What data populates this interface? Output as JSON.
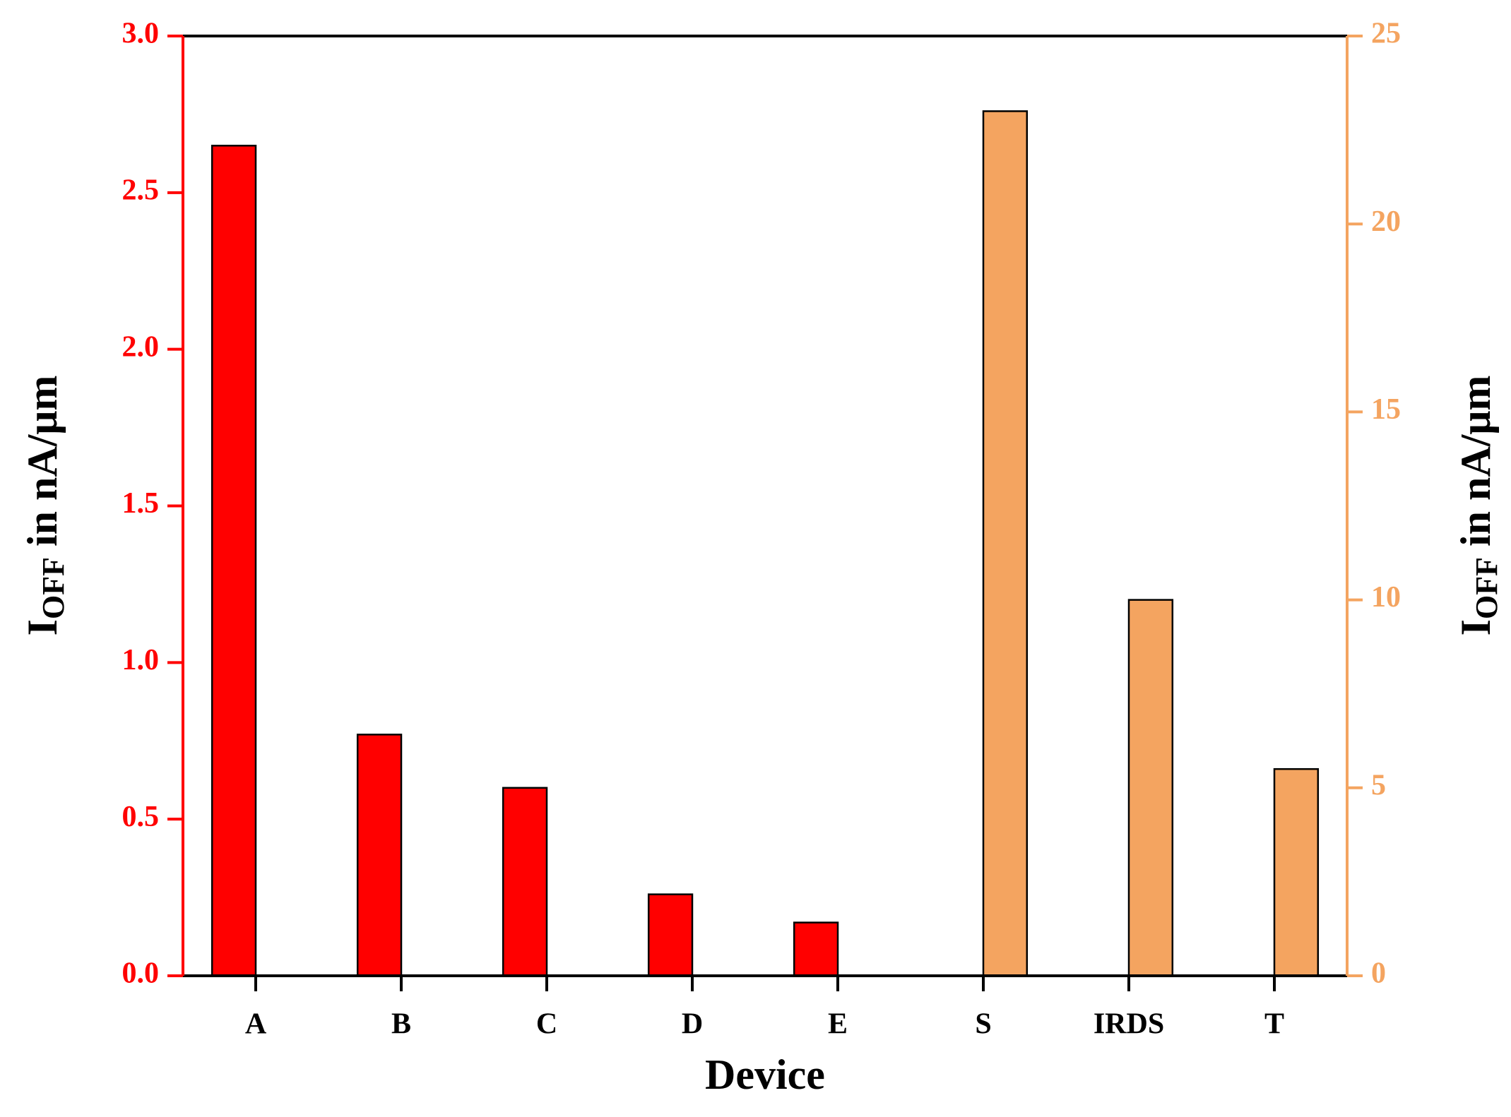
{
  "chart_data": {
    "type": "bar",
    "xlabel": "Device",
    "ylabel": [
      "I",
      "OFF",
      " in nA/μm"
    ],
    "y2label": [
      "I",
      "OFF",
      " in nA/μm"
    ],
    "categories": [
      "A",
      "B",
      "C",
      "D",
      "E",
      "S",
      "IRDS",
      "T"
    ],
    "series": [
      {
        "color": "#ff0000",
        "axis": "y",
        "values": [
          2.65,
          0.77,
          0.6,
          0.26,
          0.17,
          null,
          null,
          null
        ]
      },
      {
        "color": "#f4a460",
        "axis": "y2",
        "values": [
          null,
          null,
          null,
          null,
          null,
          23,
          10,
          5.5
        ]
      }
    ],
    "ylim": [
      0,
      3
    ],
    "yticks": [
      {
        "value": 0,
        "label": "0.0"
      },
      0.5,
      {
        "value": 1,
        "label": "1.0"
      },
      1.5,
      {
        "value": 2,
        "label": "2.0"
      },
      2.5,
      {
        "value": 3,
        "label": "3.0"
      }
    ],
    "y2lim": [
      0,
      25
    ],
    "y2ticks": [
      0,
      5,
      10,
      15,
      20,
      25
    ]
  }
}
